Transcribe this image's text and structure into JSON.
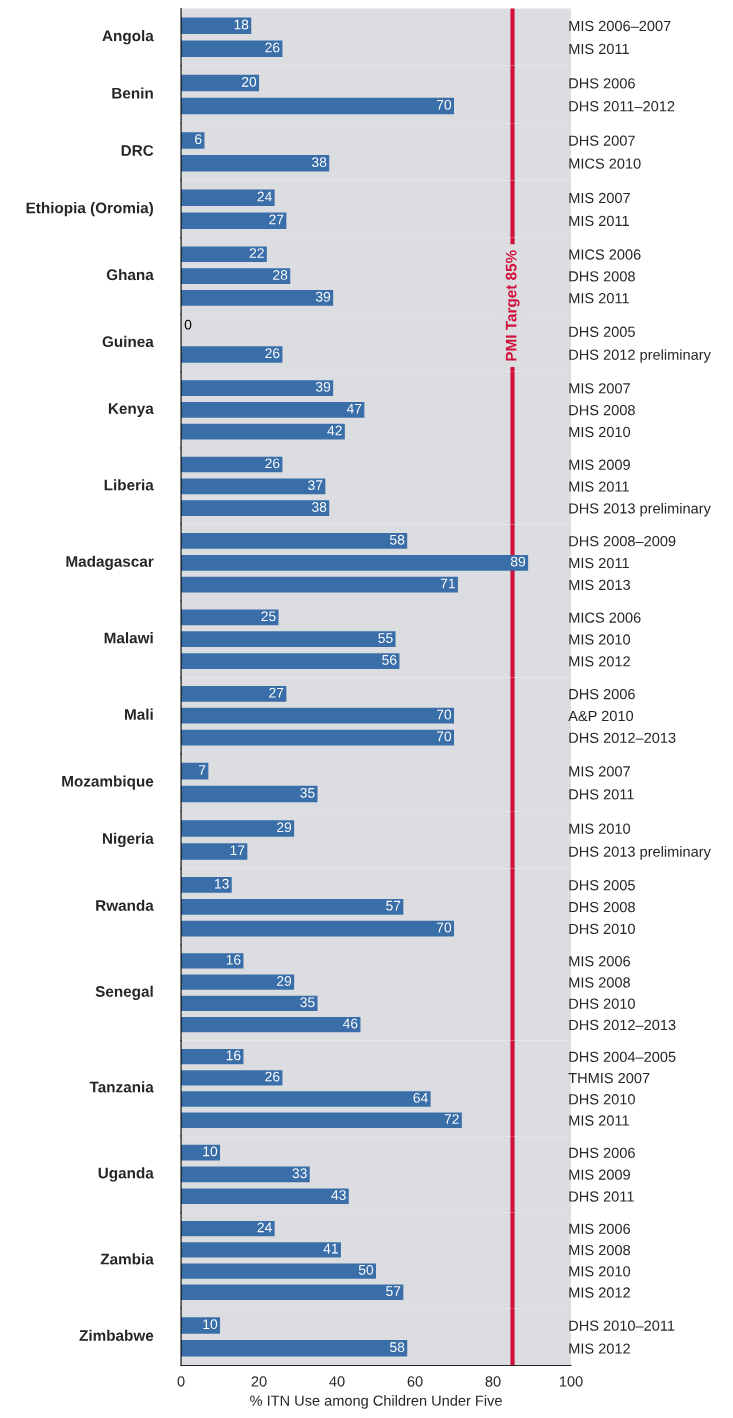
{
  "chart_data": [
    {
      "type": "bar",
      "orientation": "horizontal",
      "ylabel": "Angola",
      "categories": [
        "MIS 2006–2007",
        "MIS 2011"
      ],
      "values": [
        18,
        26
      ],
      "color": "#3a6ea8",
      "data_labels": true,
      "xlim": [
        0,
        100
      ],
      "tick_labels": "y",
      "ref_lines": [
        {
          "axis": "x",
          "value": 85,
          "color": "#d2103c"
        }
      ]
    },
    {
      "type": "bar",
      "orientation": "horizontal",
      "ylabel": "Benin",
      "categories": [
        "DHS 2006",
        "DHS 2011–2012"
      ],
      "values": [
        20,
        70
      ],
      "color": "#3a6ea8",
      "data_labels": true,
      "xlim": [
        0,
        100
      ],
      "tick_labels": "y",
      "ref_lines": [
        {
          "axis": "x",
          "value": 85,
          "color": "#d2103c"
        }
      ]
    },
    {
      "type": "bar",
      "orientation": "horizontal",
      "ylabel": "DRC",
      "categories": [
        "DHS 2007",
        "MICS 2010"
      ],
      "values": [
        6,
        38
      ],
      "color": "#3a6ea8",
      "data_labels": true,
      "xlim": [
        0,
        100
      ],
      "tick_labels": "y",
      "ref_lines": [
        {
          "axis": "x",
          "value": 85,
          "color": "#d2103c"
        }
      ]
    },
    {
      "type": "bar",
      "orientation": "horizontal",
      "ylabel": "Ethiopia (Oromia)",
      "categories": [
        "MIS 2007",
        "MIS 2011"
      ],
      "values": [
        24,
        27
      ],
      "color": "#3a6ea8",
      "data_labels": true,
      "xlim": [
        0,
        100
      ],
      "tick_labels": "y",
      "ref_lines": [
        {
          "axis": "x",
          "value": 85,
          "color": "#d2103c"
        }
      ]
    },
    {
      "type": "bar",
      "orientation": "horizontal",
      "ylabel": "Ghana",
      "categories": [
        "MICS 2006",
        "DHS 2008",
        "MIS 2011"
      ],
      "values": [
        22,
        28,
        39
      ],
      "color": "#3a6ea8",
      "data_labels": true,
      "xlim": [
        0,
        100
      ],
      "tick_labels": "y",
      "ref_lines": [
        {
          "axis": "x",
          "value": 85,
          "color": "#d2103c"
        }
      ]
    },
    {
      "type": "bar",
      "orientation": "horizontal",
      "ylabel": "Guinea",
      "categories": [
        "DHS 2005",
        "DHS 2012 preliminary"
      ],
      "values": [
        0,
        26
      ],
      "color": "#3a6ea8",
      "data_labels": true,
      "xlim": [
        0,
        100
      ],
      "tick_labels": "y",
      "ref_lines": [
        {
          "axis": "x",
          "value": 85,
          "color": "#d2103c",
          "label": "PMI Target 85%"
        }
      ]
    },
    {
      "type": "bar",
      "orientation": "horizontal",
      "ylabel": "Kenya",
      "categories": [
        "MIS 2007",
        "DHS 2008",
        "MIS 2010"
      ],
      "values": [
        39,
        47,
        42
      ],
      "color": "#3a6ea8",
      "data_labels": true,
      "xlim": [
        0,
        100
      ],
      "tick_labels": "y",
      "ref_lines": [
        {
          "axis": "x",
          "value": 85,
          "color": "#d2103c"
        }
      ]
    },
    {
      "type": "bar",
      "orientation": "horizontal",
      "ylabel": "Liberia",
      "categories": [
        "MIS 2009",
        "MIS 2011",
        "DHS 2013 preliminary"
      ],
      "values": [
        26,
        37,
        38
      ],
      "color": "#3a6ea8",
      "data_labels": true,
      "xlim": [
        0,
        100
      ],
      "tick_labels": "y",
      "ref_lines": [
        {
          "axis": "x",
          "value": 85,
          "color": "#d2103c"
        }
      ]
    },
    {
      "type": "bar",
      "orientation": "horizontal",
      "ylabel": "Madagascar",
      "categories": [
        "DHS 2008–2009",
        "MIS 2011",
        "MIS 2013"
      ],
      "values": [
        58,
        89,
        71
      ],
      "color": "#3a6ea8",
      "data_labels": true,
      "xlim": [
        0,
        100
      ],
      "tick_labels": "y",
      "ref_lines": [
        {
          "axis": "x",
          "value": 85,
          "color": "#d2103c"
        }
      ]
    },
    {
      "type": "bar",
      "orientation": "horizontal",
      "ylabel": "Malawi",
      "categories": [
        "MICS 2006",
        "MIS 2010",
        "MIS 2012"
      ],
      "values": [
        25,
        55,
        56
      ],
      "color": "#3a6ea8",
      "data_labels": true,
      "xlim": [
        0,
        100
      ],
      "tick_labels": "y",
      "ref_lines": [
        {
          "axis": "x",
          "value": 85,
          "color": "#d2103c"
        }
      ]
    },
    {
      "type": "bar",
      "orientation": "horizontal",
      "ylabel": "Mali",
      "categories": [
        "DHS 2006",
        "A&P 2010",
        "DHS 2012–2013"
      ],
      "values": [
        27,
        70,
        70
      ],
      "color": "#3a6ea8",
      "data_labels": true,
      "xlim": [
        0,
        100
      ],
      "tick_labels": "y",
      "ref_lines": [
        {
          "axis": "x",
          "value": 85,
          "color": "#d2103c"
        }
      ]
    },
    {
      "type": "bar",
      "orientation": "horizontal",
      "ylabel": "Mozambique",
      "categories": [
        "MIS 2007",
        "DHS 2011"
      ],
      "values": [
        7,
        35
      ],
      "color": "#3a6ea8",
      "data_labels": true,
      "xlim": [
        0,
        100
      ],
      "tick_labels": "y",
      "ref_lines": [
        {
          "axis": "x",
          "value": 85,
          "color": "#d2103c"
        }
      ]
    },
    {
      "type": "bar",
      "orientation": "horizontal",
      "ylabel": "Nigeria",
      "categories": [
        "MIS 2010",
        "DHS 2013 preliminary"
      ],
      "values": [
        29,
        17
      ],
      "color": "#3a6ea8",
      "data_labels": true,
      "xlim": [
        0,
        100
      ],
      "tick_labels": "y",
      "ref_lines": [
        {
          "axis": "x",
          "value": 85,
          "color": "#d2103c"
        }
      ]
    },
    {
      "type": "bar",
      "orientation": "horizontal",
      "ylabel": "Rwanda",
      "categories": [
        "DHS 2005",
        "DHS 2008",
        "DHS 2010"
      ],
      "values": [
        13,
        57,
        70
      ],
      "color": "#3a6ea8",
      "data_labels": true,
      "xlim": [
        0,
        100
      ],
      "tick_labels": "y",
      "ref_lines": [
        {
          "axis": "x",
          "value": 85,
          "color": "#d2103c"
        }
      ]
    },
    {
      "type": "bar",
      "orientation": "horizontal",
      "ylabel": "Senegal",
      "categories": [
        "MIS 2006",
        "MIS 2008",
        "DHS 2010",
        "DHS 2012–2013"
      ],
      "values": [
        16,
        29,
        35,
        46
      ],
      "color": "#3a6ea8",
      "data_labels": true,
      "xlim": [
        0,
        100
      ],
      "tick_labels": "y",
      "ref_lines": [
        {
          "axis": "x",
          "value": 85,
          "color": "#d2103c"
        }
      ]
    },
    {
      "type": "bar",
      "orientation": "horizontal",
      "ylabel": "Tanzania",
      "categories": [
        "DHS 2004–2005",
        "THMIS 2007",
        "DHS 2010",
        "MIS 2011"
      ],
      "values": [
        16,
        26,
        64,
        72
      ],
      "color": "#3a6ea8",
      "data_labels": true,
      "xlim": [
        0,
        100
      ],
      "tick_labels": "y",
      "ref_lines": [
        {
          "axis": "x",
          "value": 85,
          "color": "#d2103c"
        }
      ]
    },
    {
      "type": "bar",
      "orientation": "horizontal",
      "ylabel": "Uganda",
      "categories": [
        "DHS 2006",
        "MIS 2009",
        "DHS 2011"
      ],
      "values": [
        10,
        33,
        43
      ],
      "color": "#3a6ea8",
      "data_labels": true,
      "xlim": [
        0,
        100
      ],
      "tick_labels": "y",
      "ref_lines": [
        {
          "axis": "x",
          "value": 85,
          "color": "#d2103c"
        }
      ]
    },
    {
      "type": "bar",
      "orientation": "horizontal",
      "ylabel": "Zambia",
      "categories": [
        "MIS 2006",
        "MIS 2008",
        "MIS 2010",
        "MIS 2012"
      ],
      "values": [
        24,
        41,
        50,
        57
      ],
      "color": "#3a6ea8",
      "data_labels": true,
      "xlim": [
        0,
        100
      ],
      "tick_labels": "y",
      "ref_lines": [
        {
          "axis": "x",
          "value": 85,
          "color": "#d2103c"
        }
      ]
    },
    {
      "type": "bar",
      "orientation": "horizontal",
      "ylabel": "Zimbabwe",
      "xlabel": "% ITN Use among Children Under Five",
      "categories": [
        "DHS 2010–2011",
        "MIS 2012"
      ],
      "values": [
        10,
        58
      ],
      "color": "#3a6ea8",
      "data_labels": true,
      "xlim": [
        0,
        100
      ],
      "xticks": [
        0,
        20,
        40,
        60,
        80,
        100
      ],
      "ref_lines": [
        {
          "axis": "x",
          "value": 85,
          "color": "#d2103c"
        }
      ]
    }
  ]
}
